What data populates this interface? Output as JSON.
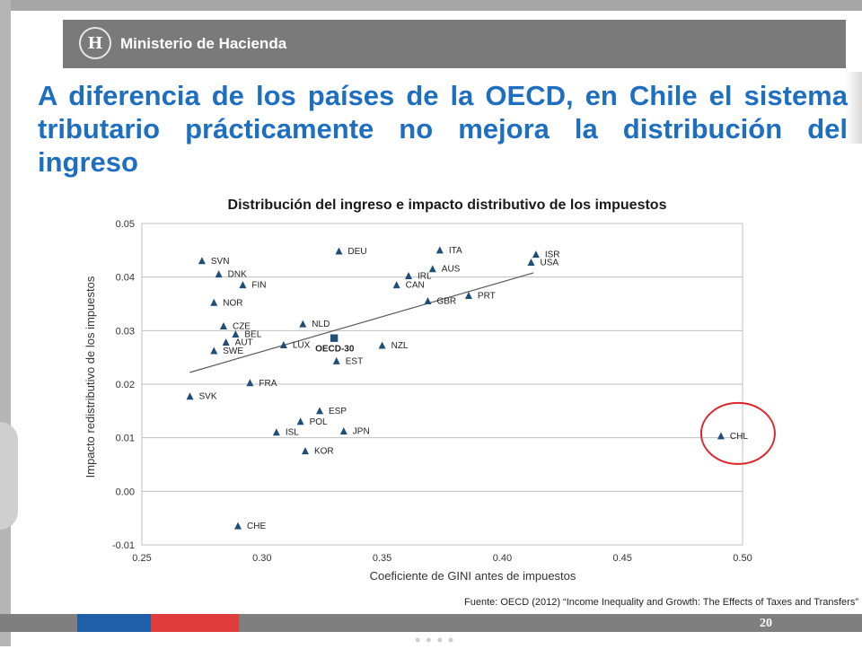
{
  "header": {
    "ministry": "Ministerio de Hacienda",
    "logo_glyph": "H"
  },
  "slide": {
    "title": "A diferencia de los países de la OECD, en Chile el sistema tributario prácticamente no mejora la distribución del ingreso",
    "source": "Fuente: OECD (2012) “Income Inequality and Growth: The Effects of Taxes and Transfers”",
    "page_number": "20",
    "dots": "••••"
  },
  "colors": {
    "title": "#1f6fc1",
    "marker": "#1f4e79",
    "highlight": "#e0262b"
  },
  "chart_data": {
    "type": "scatter",
    "title": "Distribución del ingreso e impacto distributivo de los impuestos",
    "xlabel": "Coeficiente de GINI antes de impuestos",
    "ylabel": "Impacto redistributivo de los impuestos",
    "xlim": [
      0.25,
      0.5
    ],
    "ylim": [
      -0.01,
      0.05
    ],
    "xticks": [
      "0.25",
      "0.30",
      "0.35",
      "0.40",
      "0.45",
      "0.50"
    ],
    "yticks": [
      "0.05",
      "0.04",
      "0.03",
      "0.02",
      "0.01",
      "0.00",
      "-0.01"
    ],
    "grid": "horizontal",
    "trendline": {
      "x": [
        0.27,
        0.413
      ],
      "y": [
        0.0222,
        0.0408
      ]
    },
    "highlight": "CHL",
    "points": [
      {
        "label": "SVN",
        "x": 0.275,
        "y": 0.043
      },
      {
        "label": "DNK",
        "x": 0.282,
        "y": 0.0405
      },
      {
        "label": "FIN",
        "x": 0.292,
        "y": 0.0385
      },
      {
        "label": "NOR",
        "x": 0.28,
        "y": 0.0352
      },
      {
        "label": "CZE",
        "x": 0.284,
        "y": 0.0308
      },
      {
        "label": "BEL",
        "x": 0.289,
        "y": 0.0293
      },
      {
        "label": "AUT",
        "x": 0.285,
        "y": 0.0278
      },
      {
        "label": "SWE",
        "x": 0.28,
        "y": 0.0262
      },
      {
        "label": "SVK",
        "x": 0.27,
        "y": 0.0177
      },
      {
        "label": "FRA",
        "x": 0.295,
        "y": 0.0202
      },
      {
        "label": "CHE",
        "x": 0.29,
        "y": -0.0065
      },
      {
        "label": "DEU",
        "x": 0.332,
        "y": 0.0448
      },
      {
        "label": "NLD",
        "x": 0.317,
        "y": 0.0312
      },
      {
        "label": "LUX",
        "x": 0.309,
        "y": 0.0273
      },
      {
        "label": "OECD-30",
        "x": 0.33,
        "y": 0.0286
      },
      {
        "label": "EST",
        "x": 0.331,
        "y": 0.0243
      },
      {
        "label": "NZL",
        "x": 0.35,
        "y": 0.0272
      },
      {
        "label": "ESP",
        "x": 0.324,
        "y": 0.015
      },
      {
        "label": "POL",
        "x": 0.316,
        "y": 0.013
      },
      {
        "label": "ISL",
        "x": 0.306,
        "y": 0.011
      },
      {
        "label": "JPN",
        "x": 0.334,
        "y": 0.0112
      },
      {
        "label": "KOR",
        "x": 0.318,
        "y": 0.0075
      },
      {
        "label": "ITA",
        "x": 0.374,
        "y": 0.045
      },
      {
        "label": "AUS",
        "x": 0.371,
        "y": 0.0415
      },
      {
        "label": "IRL",
        "x": 0.361,
        "y": 0.0402
      },
      {
        "label": "CAN",
        "x": 0.356,
        "y": 0.0385
      },
      {
        "label": "GBR",
        "x": 0.369,
        "y": 0.0355
      },
      {
        "label": "PRT",
        "x": 0.386,
        "y": 0.0365
      },
      {
        "label": "ISR",
        "x": 0.414,
        "y": 0.0442
      },
      {
        "label": "USA",
        "x": 0.412,
        "y": 0.0427
      },
      {
        "label": "CHL",
        "x": 0.491,
        "y": 0.0103
      }
    ]
  }
}
